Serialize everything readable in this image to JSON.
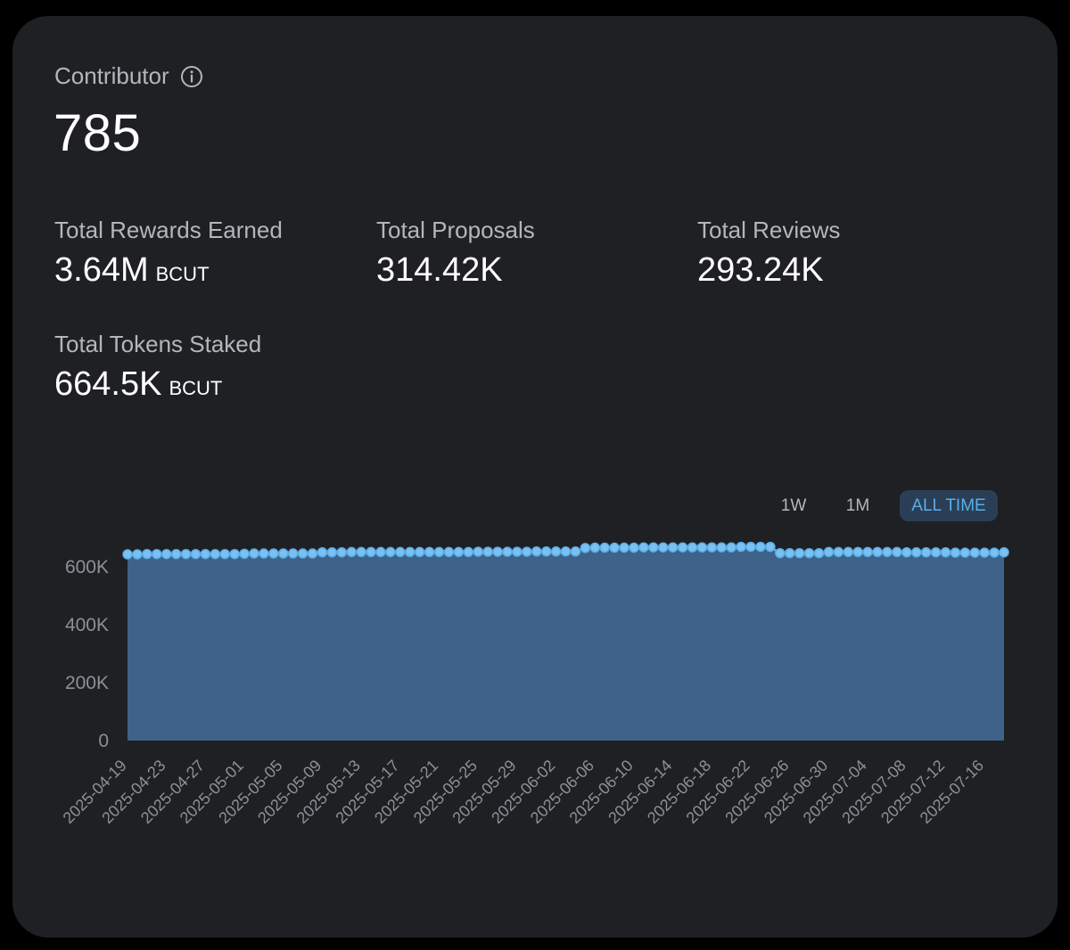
{
  "contributor": {
    "label": "Contributor",
    "value": "785",
    "info_icon": "info-icon"
  },
  "stats": {
    "rewards": {
      "label": "Total Rewards Earned",
      "value": "3.64M",
      "unit": "BCUT"
    },
    "proposals": {
      "label": "Total Proposals",
      "value": "314.42K"
    },
    "reviews": {
      "label": "Total Reviews",
      "value": "293.24K"
    },
    "staked": {
      "label": "Total Tokens Staked",
      "value": "664.5K",
      "unit": "BCUT"
    }
  },
  "range_buttons": {
    "week": "1W",
    "month": "1M",
    "all": "ALL TIME",
    "selected": "ALL TIME"
  },
  "colors": {
    "card": "#1f2023",
    "area": "#3e6288",
    "line": "#58aeea",
    "accent": "#5aaeea"
  },
  "chart_data": {
    "type": "area",
    "ylim": [
      0,
      700000
    ],
    "y_ticks": [
      "0",
      "200K",
      "400K",
      "600K"
    ],
    "y_tick_values": [
      0,
      200000,
      400000,
      600000
    ],
    "x_tick_labels": [
      "2025-04-19",
      "2025-04-23",
      "2025-04-27",
      "2025-05-01",
      "2025-05-05",
      "2025-05-09",
      "2025-05-13",
      "2025-05-17",
      "2025-05-21",
      "2025-05-25",
      "2025-05-29",
      "2025-06-02",
      "2025-06-06",
      "2025-06-10",
      "2025-06-14",
      "2025-06-18",
      "2025-06-22",
      "2025-06-26",
      "2025-06-30",
      "2025-07-04",
      "2025-07-08",
      "2025-07-12",
      "2025-07-16"
    ],
    "x_start": "2025-04-19",
    "x_end": "2025-07-18",
    "points": [
      [
        "2025-04-19",
        643000
      ],
      [
        "2025-04-20",
        643000
      ],
      [
        "2025-04-21",
        644000
      ],
      [
        "2025-04-22",
        644000
      ],
      [
        "2025-04-23",
        644000
      ],
      [
        "2025-04-24",
        644000
      ],
      [
        "2025-04-25",
        644000
      ],
      [
        "2025-04-26",
        644000
      ],
      [
        "2025-04-27",
        644000
      ],
      [
        "2025-04-28",
        644000
      ],
      [
        "2025-04-29",
        644000
      ],
      [
        "2025-04-30",
        644000
      ],
      [
        "2025-05-01",
        645000
      ],
      [
        "2025-05-02",
        646000
      ],
      [
        "2025-05-03",
        646000
      ],
      [
        "2025-05-04",
        646000
      ],
      [
        "2025-05-05",
        646000
      ],
      [
        "2025-05-06",
        646000
      ],
      [
        "2025-05-07",
        646000
      ],
      [
        "2025-05-08",
        646000
      ],
      [
        "2025-05-09",
        650000
      ],
      [
        "2025-05-10",
        650000
      ],
      [
        "2025-05-11",
        650000
      ],
      [
        "2025-05-12",
        651000
      ],
      [
        "2025-05-13",
        651000
      ],
      [
        "2025-05-14",
        651000
      ],
      [
        "2025-05-15",
        651000
      ],
      [
        "2025-05-16",
        651000
      ],
      [
        "2025-05-17",
        651000
      ],
      [
        "2025-05-18",
        651000
      ],
      [
        "2025-05-19",
        651000
      ],
      [
        "2025-05-20",
        651000
      ],
      [
        "2025-05-21",
        651000
      ],
      [
        "2025-05-22",
        651000
      ],
      [
        "2025-05-23",
        651000
      ],
      [
        "2025-05-24",
        651000
      ],
      [
        "2025-05-25",
        652000
      ],
      [
        "2025-05-26",
        652000
      ],
      [
        "2025-05-27",
        652000
      ],
      [
        "2025-05-28",
        652000
      ],
      [
        "2025-05-29",
        652000
      ],
      [
        "2025-05-30",
        652000
      ],
      [
        "2025-05-31",
        653000
      ],
      [
        "2025-06-01",
        653000
      ],
      [
        "2025-06-02",
        653000
      ],
      [
        "2025-06-03",
        653000
      ],
      [
        "2025-06-04",
        653000
      ],
      [
        "2025-06-05",
        665000
      ],
      [
        "2025-06-06",
        666000
      ],
      [
        "2025-06-07",
        666000
      ],
      [
        "2025-06-08",
        666000
      ],
      [
        "2025-06-09",
        666000
      ],
      [
        "2025-06-10",
        666000
      ],
      [
        "2025-06-11",
        667000
      ],
      [
        "2025-06-12",
        667000
      ],
      [
        "2025-06-13",
        667000
      ],
      [
        "2025-06-14",
        667000
      ],
      [
        "2025-06-15",
        667000
      ],
      [
        "2025-06-16",
        667000
      ],
      [
        "2025-06-17",
        667000
      ],
      [
        "2025-06-18",
        667000
      ],
      [
        "2025-06-19",
        667000
      ],
      [
        "2025-06-20",
        667000
      ],
      [
        "2025-06-21",
        669000
      ],
      [
        "2025-06-22",
        669000
      ],
      [
        "2025-06-23",
        669000
      ],
      [
        "2025-06-24",
        669000
      ],
      [
        "2025-06-25",
        647000
      ],
      [
        "2025-06-26",
        647000
      ],
      [
        "2025-06-27",
        647000
      ],
      [
        "2025-06-28",
        647000
      ],
      [
        "2025-06-29",
        647000
      ],
      [
        "2025-06-30",
        651000
      ],
      [
        "2025-07-01",
        651000
      ],
      [
        "2025-07-02",
        651000
      ],
      [
        "2025-07-03",
        651000
      ],
      [
        "2025-07-04",
        651000
      ],
      [
        "2025-07-05",
        651000
      ],
      [
        "2025-07-06",
        651000
      ],
      [
        "2025-07-07",
        651000
      ],
      [
        "2025-07-08",
        650000
      ],
      [
        "2025-07-09",
        650000
      ],
      [
        "2025-07-10",
        650000
      ],
      [
        "2025-07-11",
        650000
      ],
      [
        "2025-07-12",
        650000
      ],
      [
        "2025-07-13",
        649000
      ],
      [
        "2025-07-14",
        649000
      ],
      [
        "2025-07-15",
        649000
      ],
      [
        "2025-07-16",
        649000
      ],
      [
        "2025-07-17",
        649000
      ],
      [
        "2025-07-18",
        650000
      ]
    ]
  }
}
